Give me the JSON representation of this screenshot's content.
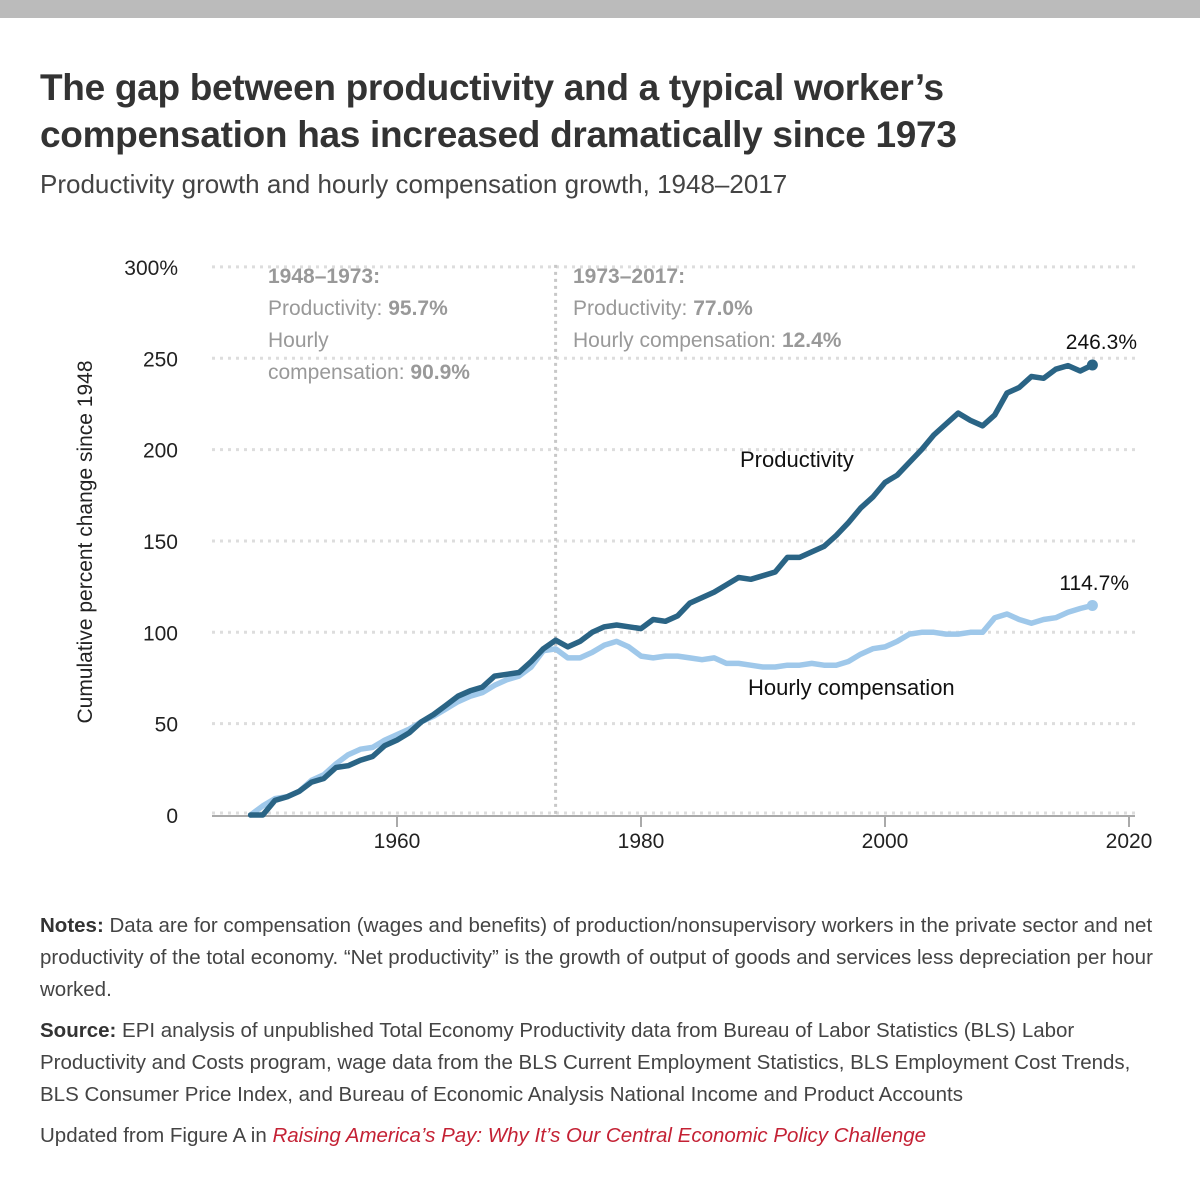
{
  "header": {
    "title": "The gap between productivity and a typical worker’s compensation has increased dramatically since 1973",
    "subtitle": "Productivity growth and hourly compensation growth, 1948–2017"
  },
  "colors": {
    "productivity": "#2a6485",
    "compensation": "#9fc8ea",
    "annotation": "#999999",
    "grid": "#dddddd",
    "axis": "#aaaaaa",
    "link": "#c42134",
    "topbar": "#bbbbbb"
  },
  "chart_data": {
    "type": "line",
    "title": "",
    "xlabel": "",
    "ylabel": "Cumulative percent change since 1948",
    "xlim": [
      1945,
      2021
    ],
    "ylim": [
      0,
      300
    ],
    "grid": true,
    "xticks": [
      1960,
      1980,
      2000,
      2020
    ],
    "xtick_labels": [
      "1960",
      "1980",
      "2000",
      "2020"
    ],
    "yticks": [
      0,
      50,
      100,
      150,
      200,
      250,
      300
    ],
    "ytick_labels": [
      "0",
      "50",
      "100",
      "150",
      "200",
      "250",
      "300%"
    ],
    "x": [
      1948,
      1949,
      1950,
      1951,
      1952,
      1953,
      1954,
      1955,
      1956,
      1957,
      1958,
      1959,
      1960,
      1961,
      1962,
      1963,
      1964,
      1965,
      1966,
      1967,
      1968,
      1969,
      1970,
      1971,
      1972,
      1973,
      1974,
      1975,
      1976,
      1977,
      1978,
      1979,
      1980,
      1981,
      1982,
      1983,
      1984,
      1985,
      1986,
      1987,
      1988,
      1989,
      1990,
      1991,
      1992,
      1993,
      1994,
      1995,
      1996,
      1997,
      1998,
      1999,
      2000,
      2001,
      2002,
      2003,
      2004,
      2005,
      2006,
      2007,
      2008,
      2009,
      2010,
      2011,
      2012,
      2013,
      2014,
      2015,
      2016,
      2017
    ],
    "series": [
      {
        "name": "Productivity",
        "label": "Productivity",
        "end_label": "246.3%",
        "values": [
          0,
          0,
          8,
          10,
          13,
          18,
          20,
          26,
          27,
          30,
          32,
          38,
          41,
          45,
          51,
          55,
          60,
          65,
          68,
          70,
          76,
          77,
          78,
          84,
          91,
          95.7,
          92,
          95,
          100,
          103,
          104,
          103,
          102,
          107,
          106,
          109,
          116,
          119,
          122,
          126,
          130,
          129,
          131,
          133,
          141,
          141,
          144,
          147,
          153,
          160,
          168,
          174,
          182,
          186,
          193,
          200,
          208,
          214,
          220,
          216,
          213,
          219,
          231,
          234,
          240,
          239,
          244,
          246,
          243,
          246.3
        ]
      },
      {
        "name": "Hourly compensation",
        "label": "Hourly compensation",
        "end_label": "114.7%",
        "values": [
          0,
          5,
          9,
          10,
          13,
          19,
          22,
          28,
          33,
          36,
          37,
          41,
          44,
          47,
          51,
          54,
          58,
          62,
          65,
          67,
          71,
          74,
          76,
          81,
          90,
          90.9,
          86,
          86,
          89,
          93,
          95,
          92,
          87,
          86,
          87,
          87,
          86,
          85,
          86,
          83,
          83,
          82,
          81,
          81,
          82,
          82,
          83,
          82,
          82,
          84,
          88,
          91,
          92,
          95,
          99,
          100,
          100,
          99,
          99,
          100,
          100,
          108,
          110,
          107,
          105,
          107,
          108,
          111,
          113,
          114.7
        ]
      }
    ],
    "divider_year": 1973,
    "annotations": [
      {
        "heading": "1948–1973:",
        "lines": [
          {
            "text": "Productivity: ",
            "value": "95.7%"
          },
          {
            "text": "Hourly",
            "value": ""
          },
          {
            "text": "compensation: ",
            "value": "90.9%"
          }
        ]
      },
      {
        "heading": "1973–2017:",
        "lines": [
          {
            "text": "Productivity: ",
            "value": "77.0%"
          },
          {
            "text": "Hourly compensation: ",
            "value": "12.4%"
          }
        ]
      }
    ]
  },
  "notes": {
    "notes_label": "Notes:",
    "notes_text": " Data are for compensation (wages and benefits) of production/nonsupervisory workers in the private sector and net productivity of the total economy. “Net productivity” is the growth of output of goods and services less depreciation per hour worked.",
    "source_label": "Source:",
    "source_text": " EPI analysis of unpublished Total Economy Productivity data from Bureau of Labor Statistics (BLS) Labor Productivity and Costs program, wage data from the BLS Current Employment Statistics, BLS Employment Cost Trends, BLS Consumer Price Index, and Bureau of Economic Analysis National Income and Product Accounts",
    "updated_prefix": "Updated from Figure A in ",
    "updated_link": "Raising America’s Pay: Why It’s Our Central Economic Policy Challenge"
  }
}
